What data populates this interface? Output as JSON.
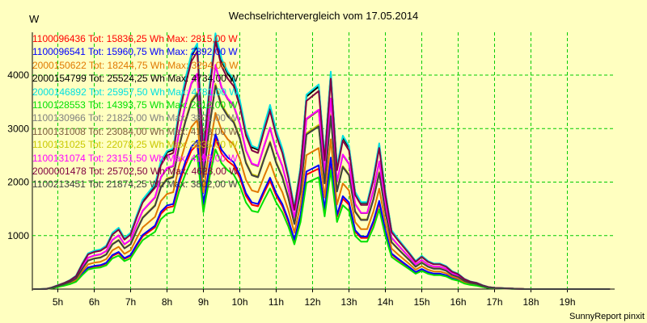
{
  "chart_data": {
    "type": "line",
    "title": "Wechselrichtervergleich vom 17.05.2014",
    "ylabel": "W",
    "footer": "SunnyReport pinxit",
    "ylim": [
      0,
      4800
    ],
    "xlim": [
      4.3,
      20.3
    ],
    "yticks": [
      1000,
      2000,
      3000,
      4000
    ],
    "xticks": [
      {
        "v": 5,
        "label": "5h"
      },
      {
        "v": 6,
        "label": "6h"
      },
      {
        "v": 7,
        "label": "7h"
      },
      {
        "v": 8,
        "label": "8h"
      },
      {
        "v": 9,
        "label": "9h"
      },
      {
        "v": 10,
        "label": "10h"
      },
      {
        "v": 11,
        "label": "11h"
      },
      {
        "v": 12,
        "label": "12h"
      },
      {
        "v": 13,
        "label": "13h"
      },
      {
        "v": 14,
        "label": "14h"
      },
      {
        "v": 15,
        "label": "15h"
      },
      {
        "v": 16,
        "label": "16h"
      },
      {
        "v": 17,
        "label": "17h"
      },
      {
        "v": 18,
        "label": "18h"
      },
      {
        "v": 19,
        "label": "19h"
      }
    ],
    "grid": true,
    "legend_position": "top-left",
    "x": [
      4.33,
      4.5,
      4.67,
      4.83,
      5.0,
      5.17,
      5.33,
      5.5,
      5.67,
      5.83,
      6.0,
      6.17,
      6.33,
      6.5,
      6.67,
      6.83,
      7.0,
      7.17,
      7.33,
      7.5,
      7.67,
      7.83,
      8.0,
      8.17,
      8.33,
      8.5,
      8.67,
      8.83,
      9.0,
      9.17,
      9.33,
      9.5,
      9.67,
      9.83,
      10.0,
      10.17,
      10.33,
      10.5,
      10.67,
      10.83,
      11.0,
      11.17,
      11.33,
      11.5,
      11.67,
      11.83,
      12.0,
      12.17,
      12.33,
      12.5,
      12.67,
      12.83,
      13.0,
      13.17,
      13.33,
      13.5,
      13.67,
      13.83,
      14.0,
      14.17,
      14.33,
      14.5,
      14.67,
      14.83,
      15.0,
      15.17,
      15.33,
      15.5,
      15.67,
      15.83,
      16.0,
      16.17,
      16.33,
      16.5,
      16.67,
      16.83,
      17.0,
      17.17,
      17.33,
      17.5,
      17.67,
      17.83,
      18.0,
      18.17,
      18.33,
      18.5,
      18.67,
      18.83,
      19.0,
      19.17,
      19.33,
      19.5,
      19.67,
      19.83,
      20.0,
      20.17
    ],
    "base_profile": [
      0,
      0,
      0.0005,
      0.006,
      0.015,
      0.024,
      0.035,
      0.052,
      0.1,
      0.14,
      0.15,
      0.155,
      0.17,
      0.22,
      0.24,
      0.2,
      0.22,
      0.29,
      0.35,
      0.38,
      0.41,
      0.5,
      0.54,
      0.55,
      0.7,
      0.82,
      0.92,
      0.96,
      0.55,
      0.8,
      1.0,
      0.9,
      0.85,
      0.82,
      0.74,
      0.62,
      0.56,
      0.55,
      0.64,
      0.72,
      0.62,
      0.55,
      0.45,
      0.32,
      0.48,
      0.76,
      0.78,
      0.8,
      0.52,
      0.85,
      0.48,
      0.6,
      0.56,
      0.38,
      0.34,
      0.34,
      0.44,
      0.57,
      0.38,
      0.23,
      0.2,
      0.17,
      0.14,
      0.11,
      0.13,
      0.11,
      0.1,
      0.1,
      0.09,
      0.07,
      0.06,
      0.04,
      0.03,
      0.025,
      0.015,
      0.008,
      0.005,
      0.004,
      0.003,
      0.002,
      0.001,
      0,
      0,
      0,
      0,
      0,
      0,
      0,
      0,
      0,
      0,
      0,
      0,
      0,
      0,
      0,
      0
    ],
    "series": [
      {
        "name": "1100096436",
        "label": "1100096436 Tot: 15836,25 Wh Max: 2815,00 W",
        "color": "#ff0000",
        "max": 2815
      },
      {
        "name": "1100096541",
        "label": "1100096541 Tot: 15960,75 Wh Max: 2892,00 W",
        "color": "#0000ff",
        "max": 2892
      },
      {
        "name": "2000150622",
        "label": "2000150622 Tot: 18244,75 Wh Max: 3294,00 W",
        "color": "#e07800",
        "max": 3294
      },
      {
        "name": "2000154799",
        "label": "2000154799 Tot: 25524,25 Wh Max: 4734,00 W",
        "color": "#000000",
        "max": 4734
      },
      {
        "name": "2000146892",
        "label": "2000146892 Tot: 25957,50 Wh Max: 4781,00 W",
        "color": "#00e0e0",
        "max": 4781
      },
      {
        "name": "1100128553",
        "label": "1100128553 Tot: 14393,75 Wh Max: 2612,00 W",
        "color": "#00e000",
        "max": 2612
      },
      {
        "name": "1100130966",
        "label": "1100130966 Tot: 21825,00 Wh Max: 3801,00 W",
        "color": "#808080",
        "max": 3801
      },
      {
        "name": "1100131008",
        "label": "1100131008 Tot: 23084,00 Wh Max: 4173,00 W",
        "color": "#806040",
        "max": 4173
      },
      {
        "name": "1100131025",
        "label": "1100131025 Tot: 22078,25 Wh Max: 3835,00 W",
        "color": "#c8c800",
        "max": 3835
      },
      {
        "name": "1100131074",
        "label": "1100131074 Tot: 23151,50 Wh Max: 4193,00 W",
        "color": "#ff00ff",
        "max": 4193
      },
      {
        "name": "2000001478",
        "label": "2000001478 Tot: 25702,50 Wh Max: 4628,00 W",
        "color": "#800040",
        "max": 4628
      },
      {
        "name": "1100213451",
        "label": "1100213451 Tot: 21874,25 Wh Max: 3802,00 W",
        "color": "#404040",
        "max": 3802
      }
    ]
  }
}
